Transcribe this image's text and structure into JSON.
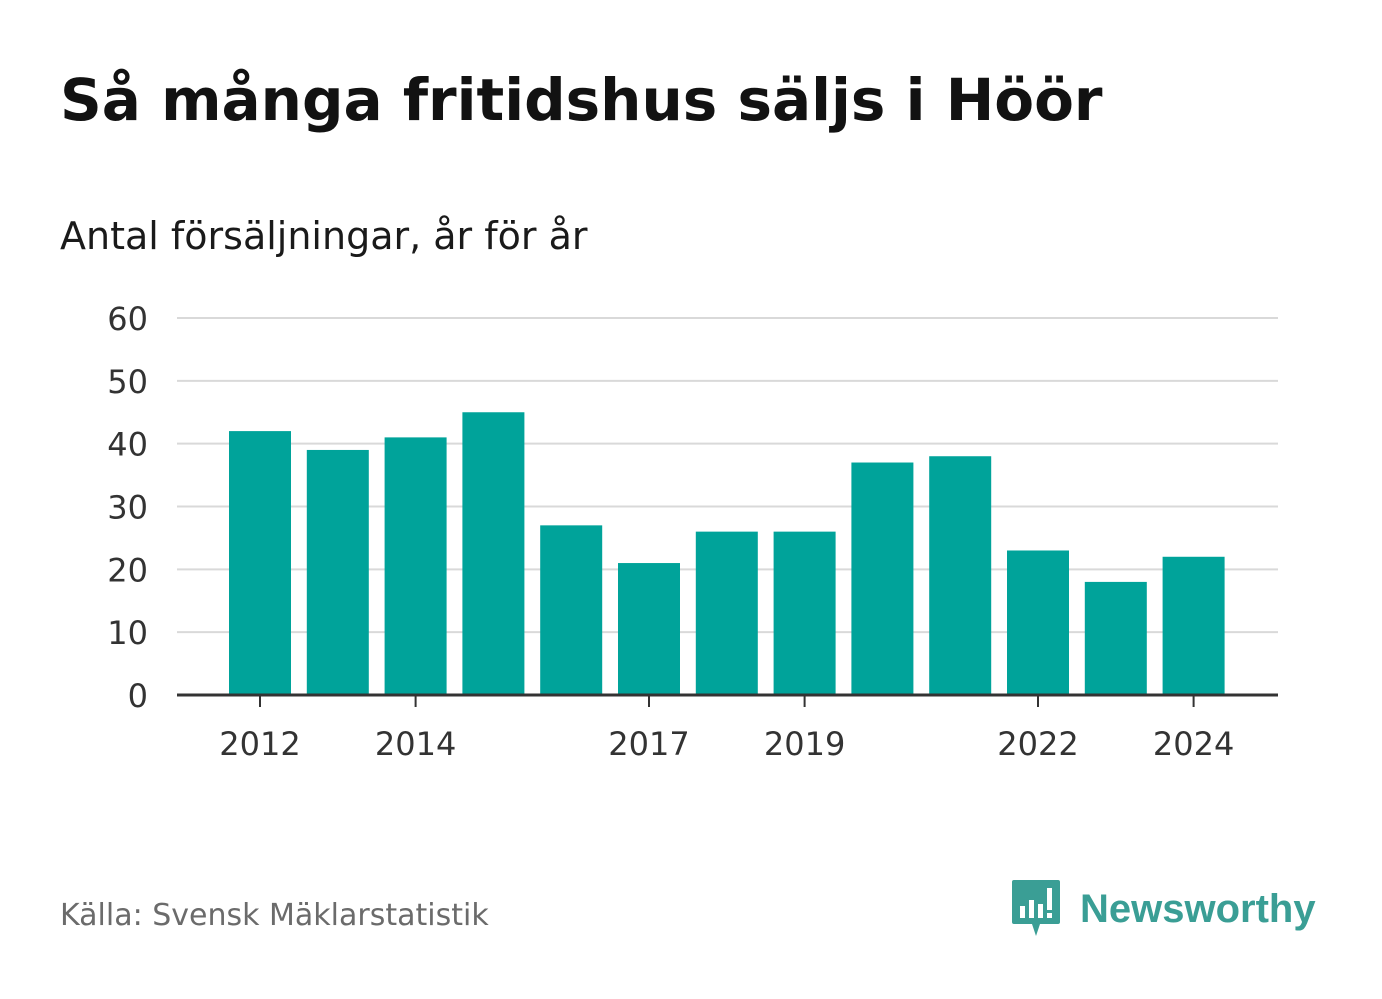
{
  "title": "Så många fritidshus säljs i Höör",
  "subtitle": "Antal försäljningar, år för år",
  "source": "Källa: Svensk Mäklarstatistik",
  "brand": {
    "name": "Newsworthy",
    "icon": "newsworthy-logo-icon",
    "color": "#3a9e95"
  },
  "colors": {
    "bar": "#00a39a",
    "grid": "#d9d9d9",
    "axis": "#333333",
    "tick_text": "#333333"
  },
  "chart_data": {
    "type": "bar",
    "categories": [
      "2012",
      "2013",
      "2014",
      "2015",
      "2016",
      "2017",
      "2018",
      "2019",
      "2020",
      "2021",
      "2022",
      "2023",
      "2024"
    ],
    "values": [
      42,
      39,
      41,
      45,
      27,
      21,
      26,
      26,
      37,
      38,
      23,
      18,
      22
    ],
    "x_tick_labels": [
      "2012",
      "2014",
      "2017",
      "2019",
      "2022",
      "2024"
    ],
    "y_ticks": [
      0,
      10,
      20,
      30,
      40,
      50,
      60
    ],
    "ylim": [
      0,
      60
    ],
    "grid": true,
    "title": "Så många fritidshus säljs i Höör",
    "subtitle": "Antal försäljningar, år för år",
    "xlabel": "",
    "ylabel": ""
  }
}
